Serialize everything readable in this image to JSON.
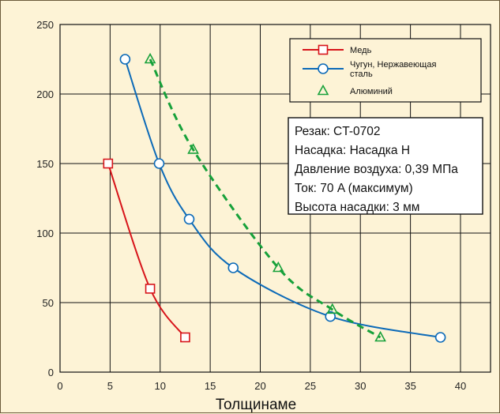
{
  "chart_data": {
    "type": "line",
    "xlabel": "Толщинаме",
    "ylabel": "",
    "xlim": [
      0,
      43
    ],
    "ylim": [
      0,
      250
    ],
    "xticks": [
      0,
      5,
      10,
      15,
      20,
      25,
      30,
      35,
      40
    ],
    "yticks": [
      0,
      50,
      100,
      150,
      200,
      250
    ],
    "grid": true,
    "legend_position": "top-right",
    "series": [
      {
        "name": "Медь",
        "color": "#d7141a",
        "line": "solid",
        "marker": "square",
        "points": [
          [
            4.8,
            150
          ],
          [
            9.0,
            60
          ],
          [
            12.5,
            25
          ]
        ]
      },
      {
        "name": "Чугун, Нержавеющая сталь",
        "name_lines": [
          "Чугун, Нержавеющая",
          "сталь"
        ],
        "color": "#0c6ab8",
        "line": "solid",
        "marker": "circle",
        "points": [
          [
            6.5,
            225
          ],
          [
            9.9,
            150
          ],
          [
            12.9,
            110
          ],
          [
            17.3,
            75
          ],
          [
            27.0,
            40
          ],
          [
            38.0,
            25
          ]
        ]
      },
      {
        "name": "Алюминий",
        "color": "#17a13a",
        "line": "dashed",
        "marker": "triangle",
        "points": [
          [
            9.0,
            225
          ],
          [
            13.3,
            160
          ],
          [
            21.8,
            75
          ],
          [
            27.2,
            45
          ],
          [
            32.0,
            25
          ]
        ]
      }
    ],
    "annotation": {
      "lines": [
        "Резак: CT-0702",
        "Насадка: Насадка H",
        "Давление воздуха: 0,39 МПа",
        "Ток: 70 A (максимум)",
        "Высота насадки: 3 мм"
      ]
    }
  }
}
